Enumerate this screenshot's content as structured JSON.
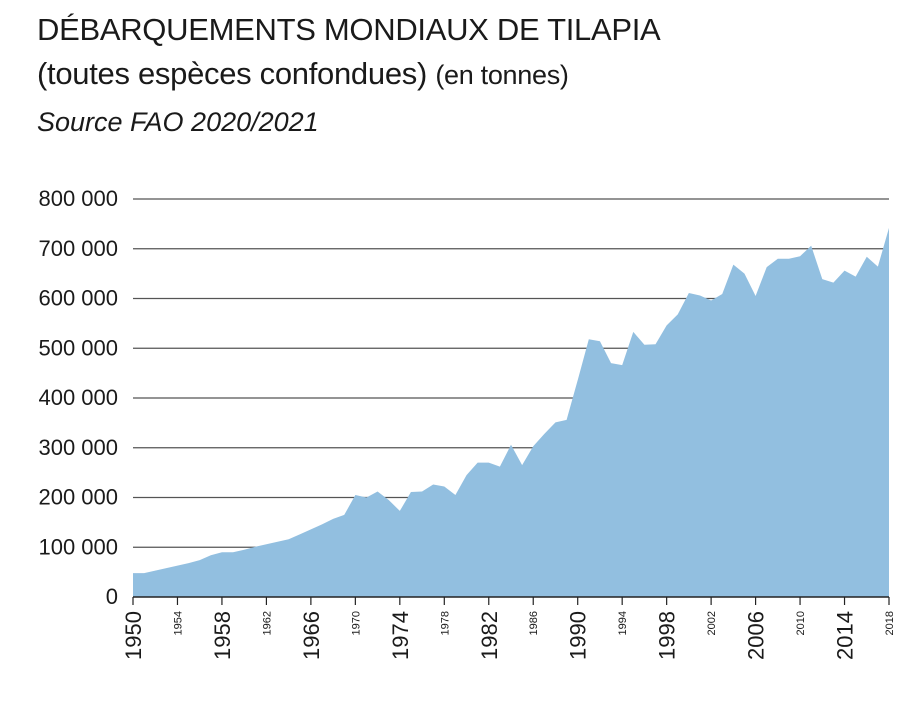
{
  "title": "DÉBARQUEMENTS MONDIAUX DE TILAPIA",
  "subtitle": "(toutes espèces confondues)",
  "unit": "(en tonnes)",
  "source": "Source FAO 2020/2021",
  "colors": {
    "area": "#92bfe0",
    "grid": "#555555",
    "axis": "#222222"
  },
  "chart_data": {
    "type": "area",
    "xlim": [
      1950,
      2018
    ],
    "ylim": [
      0,
      800000
    ],
    "grid": true,
    "yticks": [
      {
        "value": 0,
        "label": "0"
      },
      {
        "value": 100000,
        "label": "100 000"
      },
      {
        "value": 200000,
        "label": "200 000"
      },
      {
        "value": 300000,
        "label": "300 000"
      },
      {
        "value": 400000,
        "label": "400 000"
      },
      {
        "value": 500000,
        "label": "500 000"
      },
      {
        "value": 600000,
        "label": "600 000"
      },
      {
        "value": 700000,
        "label": "700 000"
      },
      {
        "value": 800000,
        "label": "800 000"
      }
    ],
    "xticks": [
      {
        "value": 1950,
        "label": "1950",
        "size": "big"
      },
      {
        "value": 1954,
        "label": "1954",
        "size": "small"
      },
      {
        "value": 1958,
        "label": "1958",
        "size": "big"
      },
      {
        "value": 1962,
        "label": "1962",
        "size": "small"
      },
      {
        "value": 1966,
        "label": "1966",
        "size": "big"
      },
      {
        "value": 1970,
        "label": "1970",
        "size": "small"
      },
      {
        "value": 1974,
        "label": "1974",
        "size": "big"
      },
      {
        "value": 1978,
        "label": "1978",
        "size": "small"
      },
      {
        "value": 1982,
        "label": "1982",
        "size": "big"
      },
      {
        "value": 1986,
        "label": "1986",
        "size": "small"
      },
      {
        "value": 1990,
        "label": "1990",
        "size": "big"
      },
      {
        "value": 1994,
        "label": "1994",
        "size": "small"
      },
      {
        "value": 1998,
        "label": "1998",
        "size": "big"
      },
      {
        "value": 2002,
        "label": "2002",
        "size": "small"
      },
      {
        "value": 2006,
        "label": "2006",
        "size": "big"
      },
      {
        "value": 2010,
        "label": "2010",
        "size": "small"
      },
      {
        "value": 2014,
        "label": "2014",
        "size": "big"
      },
      {
        "value": 2018,
        "label": "2018",
        "size": "small"
      }
    ],
    "x": [
      1950,
      1951,
      1952,
      1953,
      1954,
      1955,
      1956,
      1957,
      1958,
      1959,
      1960,
      1961,
      1962,
      1963,
      1964,
      1965,
      1966,
      1967,
      1968,
      1969,
      1970,
      1971,
      1972,
      1973,
      1974,
      1975,
      1976,
      1977,
      1978,
      1979,
      1980,
      1981,
      1982,
      1983,
      1984,
      1985,
      1986,
      1987,
      1988,
      1989,
      1990,
      1991,
      1992,
      1993,
      1994,
      1995,
      1996,
      1997,
      1998,
      1999,
      2000,
      2001,
      2002,
      2003,
      2004,
      2005,
      2006,
      2007,
      2008,
      2009,
      2010,
      2011,
      2012,
      2013,
      2014,
      2015,
      2016,
      2017,
      2018
    ],
    "series": [
      {
        "values": [
          48000,
          48000,
          53000,
          58000,
          63000,
          68000,
          74000,
          84000,
          90000,
          90000,
          95000,
          101000,
          106000,
          111000,
          116000,
          126000,
          136000,
          146000,
          157000,
          165000,
          205000,
          200000,
          212000,
          195000,
          173000,
          211000,
          212000,
          226000,
          222000,
          205000,
          245000,
          270000,
          270000,
          262000,
          306000,
          265000,
          303000,
          328000,
          351000,
          356000,
          436000,
          518000,
          514000,
          470000,
          466000,
          533000,
          507000,
          508000,
          546000,
          568000,
          611000,
          606000,
          596000,
          609000,
          668000,
          650000,
          605000,
          663000,
          680000,
          680000,
          685000,
          706000,
          639000,
          632000,
          656000,
          644000,
          684000,
          664000,
          742000
        ]
      }
    ]
  }
}
